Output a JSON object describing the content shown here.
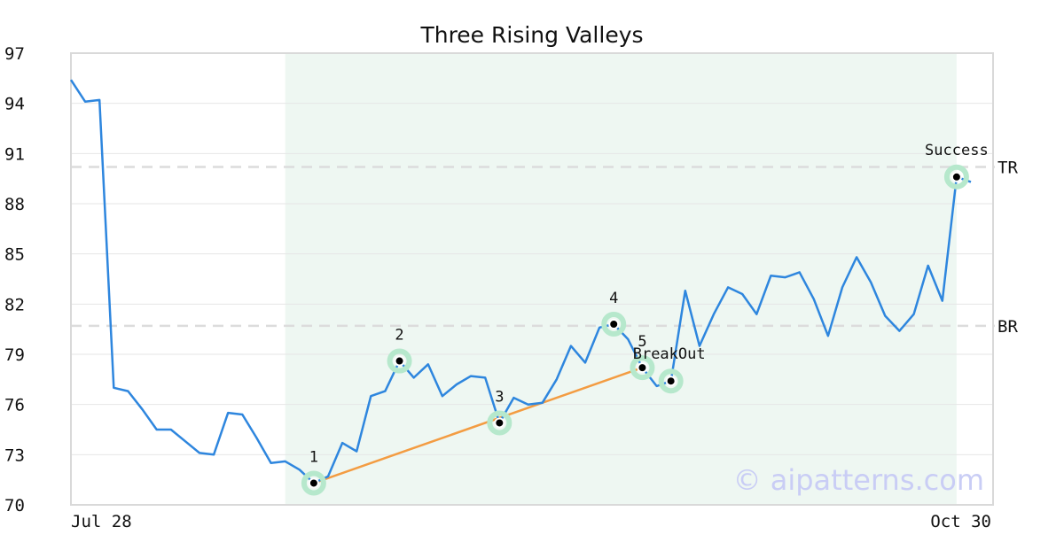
{
  "chart_data": {
    "type": "line",
    "title": "Three Rising Valleys",
    "xlabel": "",
    "ylabel": "",
    "ylim": [
      70,
      97
    ],
    "yticks": [
      70,
      73,
      76,
      79,
      82,
      85,
      88,
      91,
      94,
      97
    ],
    "xtick_labels": [
      "Jul 28",
      "Oct 30"
    ],
    "grid": true,
    "series": [
      {
        "color": "#2e86de",
        "values": [
          95.4,
          94.1,
          94.2,
          77.0,
          76.8,
          75.7,
          74.5,
          74.5,
          73.8,
          73.1,
          73.0,
          75.5,
          75.4,
          74.0,
          72.5,
          72.6,
          72.1,
          71.3,
          71.7,
          73.7,
          73.2,
          76.5,
          76.8,
          78.6,
          77.6,
          78.4,
          76.5,
          77.2,
          77.7,
          77.6,
          74.9,
          76.4,
          76.0,
          76.1,
          77.5,
          79.5,
          78.5,
          80.6,
          80.8,
          79.9,
          78.2,
          77.1,
          77.4,
          82.8,
          79.5,
          81.4,
          83.0,
          82.6,
          81.4,
          83.7,
          83.6,
          83.9,
          82.3,
          80.1,
          83.0,
          84.8,
          83.3,
          81.3,
          80.4,
          81.4,
          84.3,
          82.2,
          89.6,
          89.3
        ]
      }
    ],
    "shaded_region": {
      "from_index": 15,
      "to_index": 62,
      "color": "#eef7f2"
    },
    "trend_line": {
      "color": "#f39c42",
      "points": [
        [
          17,
          71.3
        ],
        [
          40,
          78.2
        ]
      ]
    },
    "levels": [
      {
        "label": "TR",
        "value": 90.2
      },
      {
        "label": "BR",
        "value": 80.7
      }
    ],
    "annotations": [
      {
        "label": "1",
        "index": 17,
        "value": 71.3
      },
      {
        "label": "2",
        "index": 23,
        "value": 78.6
      },
      {
        "label": "3",
        "index": 30,
        "value": 74.9
      },
      {
        "label": "4",
        "index": 38,
        "value": 80.8
      },
      {
        "label": "5",
        "index": 40,
        "value": 78.2
      },
      {
        "label": "BreakOut",
        "index": 42,
        "value": 77.4
      },
      {
        "label": "Success",
        "index": 62,
        "value": 89.6
      }
    ],
    "watermark": "© aipatterns.com"
  }
}
